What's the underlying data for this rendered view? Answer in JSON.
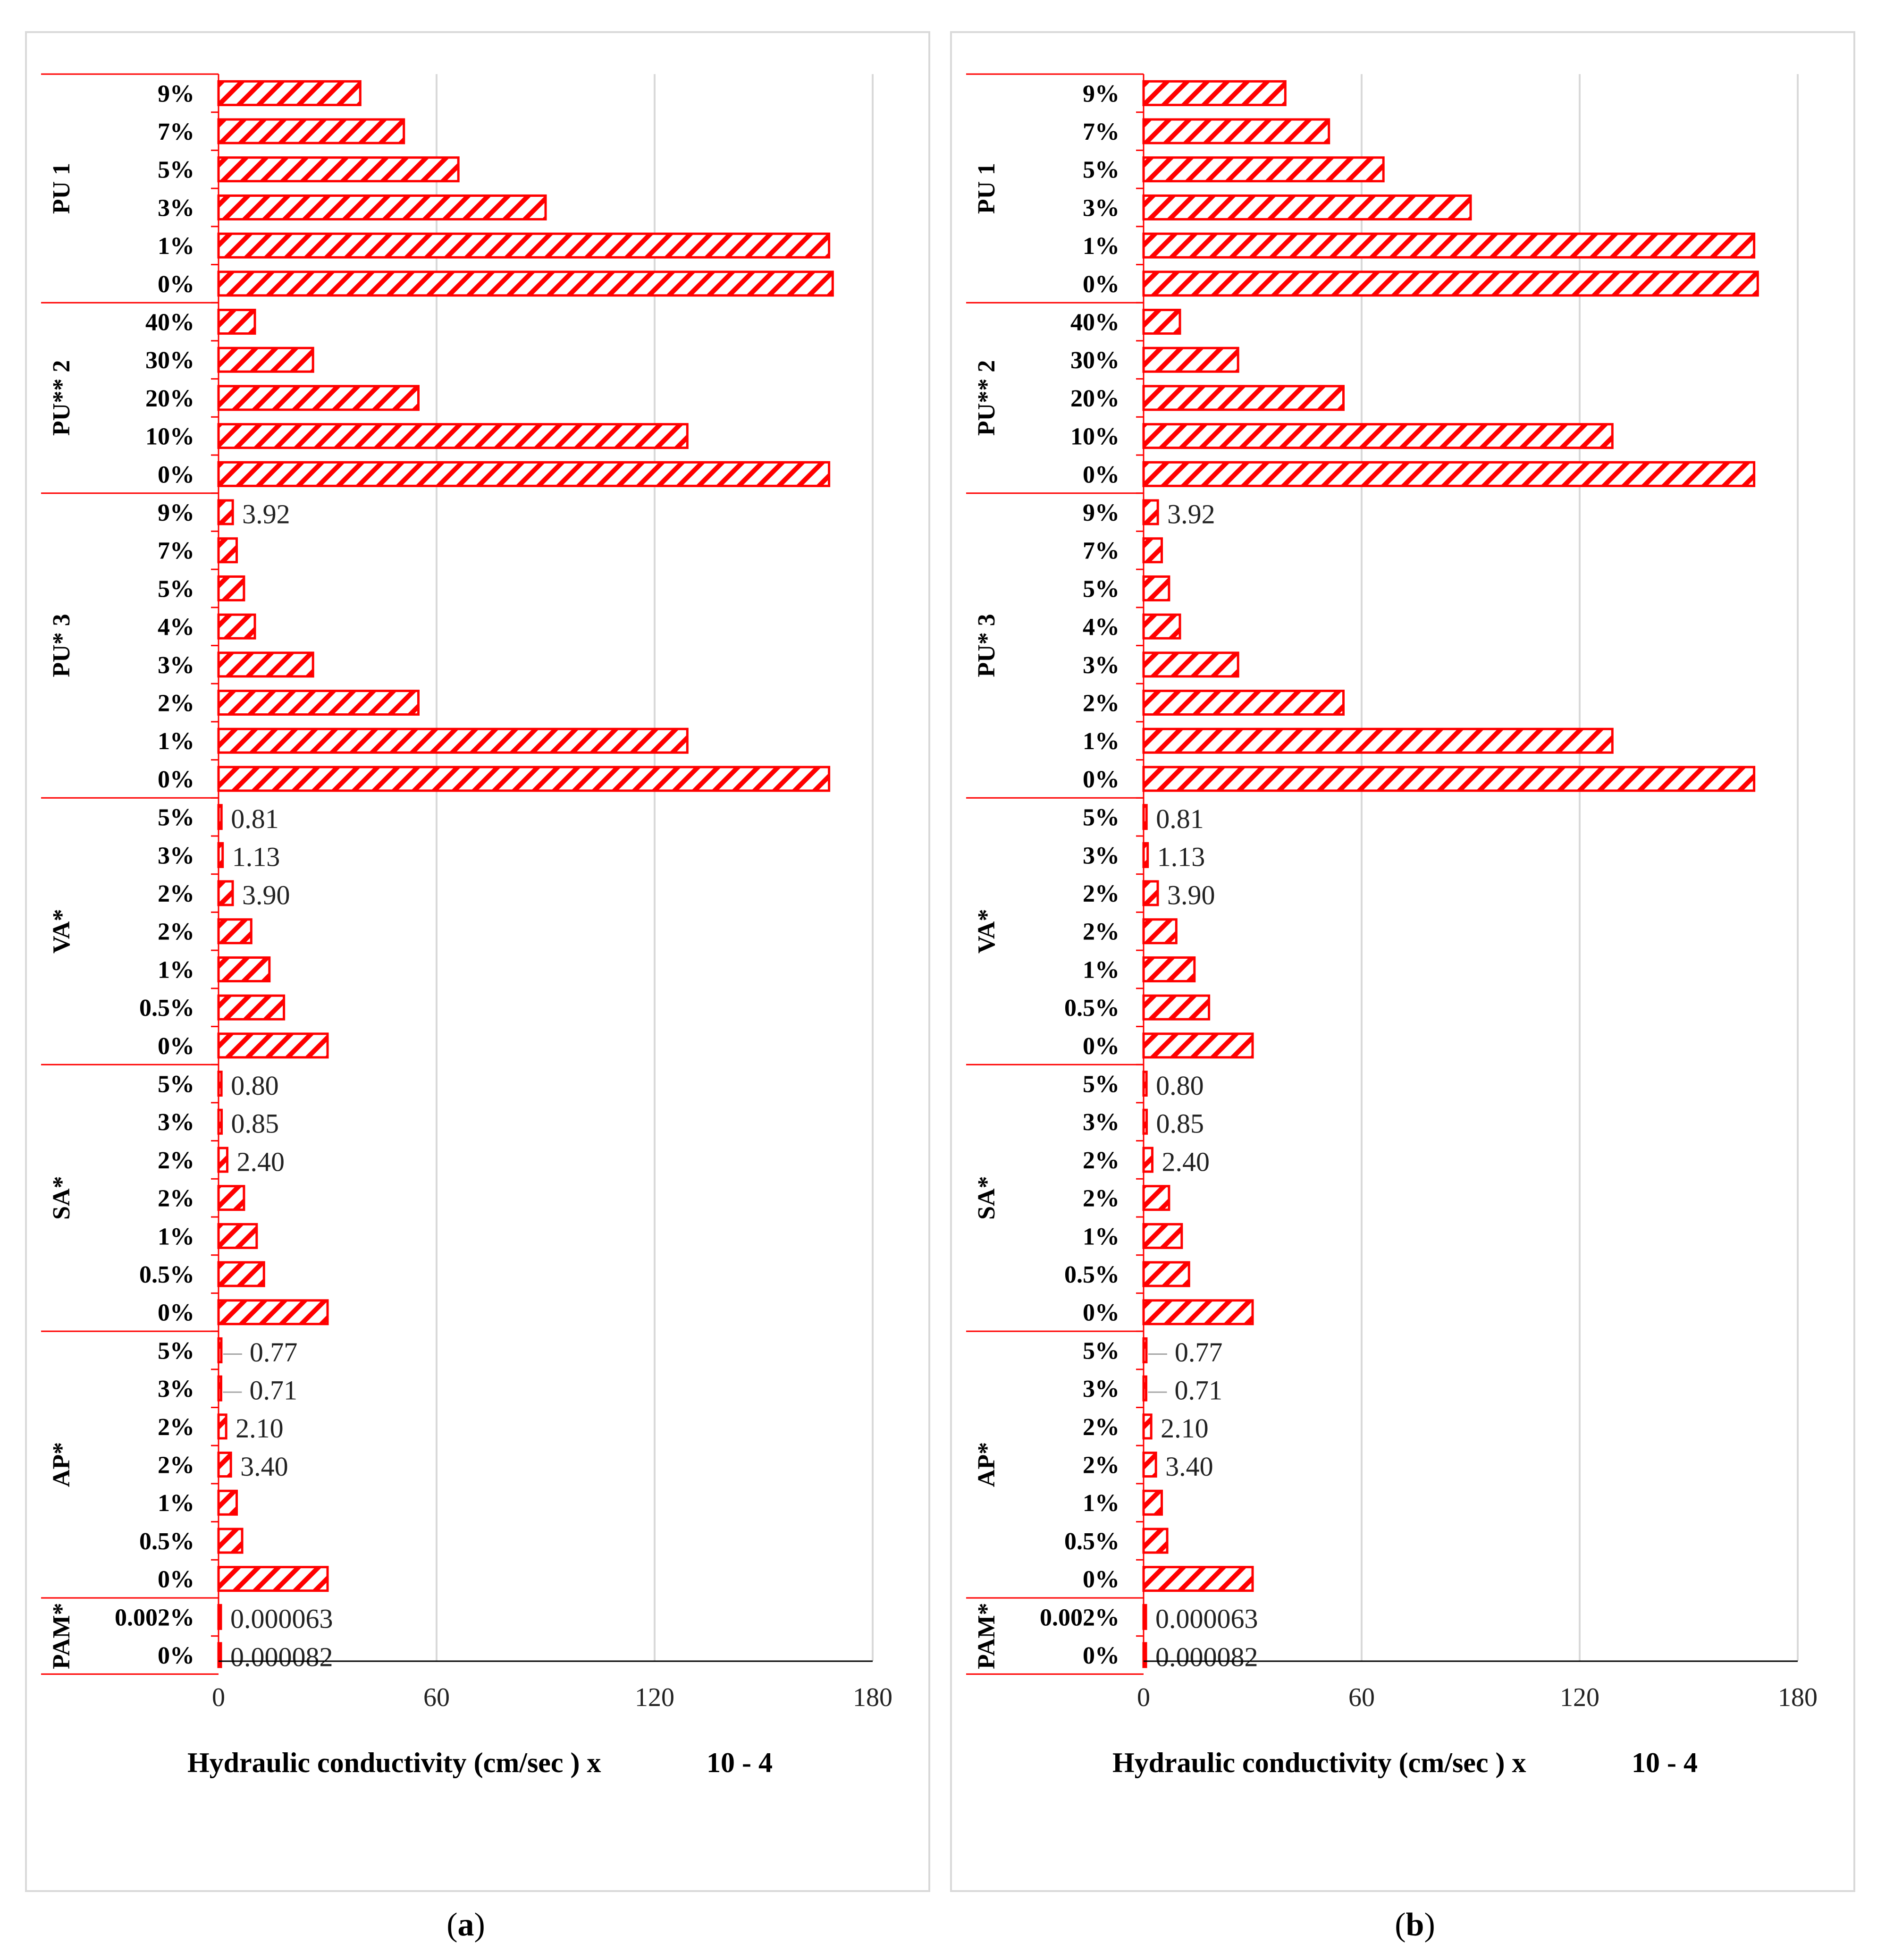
{
  "colors": {
    "bar": "#ff0000",
    "grid": "#d9d9d9",
    "axis": "#000000",
    "separator": "#ff0000"
  },
  "captions": {
    "a_letter": "a",
    "b_letter": "b"
  },
  "chart_data": [
    {
      "type": "bar",
      "orientation": "horizontal",
      "panel": "a",
      "xlabel": "Hydraulic conductivity (cm/sec ) x",
      "xlabel_exponent": "10 - 4",
      "xlim": [
        0,
        180
      ],
      "xticks": [
        0,
        60,
        120,
        180
      ],
      "groups": [
        {
          "name": "PU 1",
          "bars": [
            {
              "label": "9%",
              "value": 39
            },
            {
              "label": "7%",
              "value": 51
            },
            {
              "label": "5%",
              "value": 66
            },
            {
              "label": "3%",
              "value": 90
            },
            {
              "label": "1%",
              "value": 168
            },
            {
              "label": "0%",
              "value": 169
            }
          ]
        },
        {
          "name": "PU** 2",
          "bars": [
            {
              "label": "40%",
              "value": 10
            },
            {
              "label": "30%",
              "value": 26
            },
            {
              "label": "20%",
              "value": 55
            },
            {
              "label": "10%",
              "value": 129
            },
            {
              "label": "0%",
              "value": 168
            }
          ]
        },
        {
          "name": "PU* 3",
          "bars": [
            {
              "label": "9%",
              "value": 3.92,
              "data_label": "3.92"
            },
            {
              "label": "7%",
              "value": 5
            },
            {
              "label": "5%",
              "value": 7
            },
            {
              "label": "4%",
              "value": 10
            },
            {
              "label": "3%",
              "value": 26
            },
            {
              "label": "2%",
              "value": 55
            },
            {
              "label": "1%",
              "value": 129
            },
            {
              "label": "0%",
              "value": 168
            }
          ]
        },
        {
          "name": "VA*",
          "bars": [
            {
              "label": "5%",
              "value": 0.81,
              "data_label": "0.81"
            },
            {
              "label": "3%",
              "value": 1.13,
              "data_label": "1.13"
            },
            {
              "label": "2%",
              "value": 3.9,
              "data_label": "3.90"
            },
            {
              "label": "2%",
              "value": 9
            },
            {
              "label": "1%",
              "value": 14
            },
            {
              "label": "0.5%",
              "value": 18
            },
            {
              "label": "0%",
              "value": 30
            }
          ]
        },
        {
          "name": "SA*",
          "bars": [
            {
              "label": "5%",
              "value": 0.8,
              "data_label": "0.80"
            },
            {
              "label": "3%",
              "value": 0.85,
              "data_label": "0.85"
            },
            {
              "label": "2%",
              "value": 2.4,
              "data_label": "2.40"
            },
            {
              "label": "2%",
              "value": 7
            },
            {
              "label": "1%",
              "value": 10.5
            },
            {
              "label": "0.5%",
              "value": 12.5
            },
            {
              "label": "0%",
              "value": 30
            }
          ]
        },
        {
          "name": "AP*",
          "bars": [
            {
              "label": "5%",
              "value": 0.77,
              "data_label": "0.77"
            },
            {
              "label": "3%",
              "value": 0.71,
              "data_label": "0.71"
            },
            {
              "label": "2%",
              "value": 2.1,
              "data_label": "2.10"
            },
            {
              "label": "2%",
              "value": 3.4,
              "data_label": "3.40"
            },
            {
              "label": "1%",
              "value": 5
            },
            {
              "label": "0.5%",
              "value": 6.5
            },
            {
              "label": "0%",
              "value": 30
            }
          ]
        },
        {
          "name": "PAM*",
          "bars": [
            {
              "label": "0.002%",
              "value": 6.3e-05,
              "data_label": "0.000063"
            },
            {
              "label": "0%",
              "value": 8.2e-05,
              "data_label": "0.000082"
            }
          ]
        }
      ]
    },
    {
      "type": "bar",
      "orientation": "horizontal",
      "panel": "b",
      "xlabel": "Hydraulic conductivity (cm/sec ) x",
      "xlabel_exponent": "10 - 4",
      "xlim": [
        0,
        180
      ],
      "xticks": [
        0,
        60,
        120,
        180
      ],
      "groups": [
        {
          "name": "PU 1",
          "bars": [
            {
              "label": "9%",
              "value": 39
            },
            {
              "label": "7%",
              "value": 51
            },
            {
              "label": "5%",
              "value": 66
            },
            {
              "label": "3%",
              "value": 90
            },
            {
              "label": "1%",
              "value": 168
            },
            {
              "label": "0%",
              "value": 169
            }
          ]
        },
        {
          "name": "PU** 2",
          "bars": [
            {
              "label": "40%",
              "value": 10
            },
            {
              "label": "30%",
              "value": 26
            },
            {
              "label": "20%",
              "value": 55
            },
            {
              "label": "10%",
              "value": 129
            },
            {
              "label": "0%",
              "value": 168
            }
          ]
        },
        {
          "name": "PU* 3",
          "bars": [
            {
              "label": "9%",
              "value": 3.92,
              "data_label": "3.92"
            },
            {
              "label": "7%",
              "value": 5
            },
            {
              "label": "5%",
              "value": 7
            },
            {
              "label": "4%",
              "value": 10
            },
            {
              "label": "3%",
              "value": 26
            },
            {
              "label": "2%",
              "value": 55
            },
            {
              "label": "1%",
              "value": 129
            },
            {
              "label": "0%",
              "value": 168
            }
          ]
        },
        {
          "name": "VA*",
          "bars": [
            {
              "label": "5%",
              "value": 0.81,
              "data_label": "0.81"
            },
            {
              "label": "3%",
              "value": 1.13,
              "data_label": "1.13"
            },
            {
              "label": "2%",
              "value": 3.9,
              "data_label": "3.90"
            },
            {
              "label": "2%",
              "value": 9
            },
            {
              "label": "1%",
              "value": 14
            },
            {
              "label": "0.5%",
              "value": 18
            },
            {
              "label": "0%",
              "value": 30
            }
          ]
        },
        {
          "name": "SA*",
          "bars": [
            {
              "label": "5%",
              "value": 0.8,
              "data_label": "0.80"
            },
            {
              "label": "3%",
              "value": 0.85,
              "data_label": "0.85"
            },
            {
              "label": "2%",
              "value": 2.4,
              "data_label": "2.40"
            },
            {
              "label": "2%",
              "value": 7
            },
            {
              "label": "1%",
              "value": 10.5
            },
            {
              "label": "0.5%",
              "value": 12.5
            },
            {
              "label": "0%",
              "value": 30
            }
          ]
        },
        {
          "name": "AP*",
          "bars": [
            {
              "label": "5%",
              "value": 0.77,
              "data_label": "0.77"
            },
            {
              "label": "3%",
              "value": 0.71,
              "data_label": "0.71"
            },
            {
              "label": "2%",
              "value": 2.1,
              "data_label": "2.10"
            },
            {
              "label": "2%",
              "value": 3.4,
              "data_label": "3.40"
            },
            {
              "label": "1%",
              "value": 5
            },
            {
              "label": "0.5%",
              "value": 6.5
            },
            {
              "label": "0%",
              "value": 30
            }
          ]
        },
        {
          "name": "PAM*",
          "bars": [
            {
              "label": "0.002%",
              "value": 6.3e-05,
              "data_label": "0.000063"
            },
            {
              "label": "0%",
              "value": 8.2e-05,
              "data_label": "0.000082"
            }
          ]
        }
      ]
    }
  ]
}
